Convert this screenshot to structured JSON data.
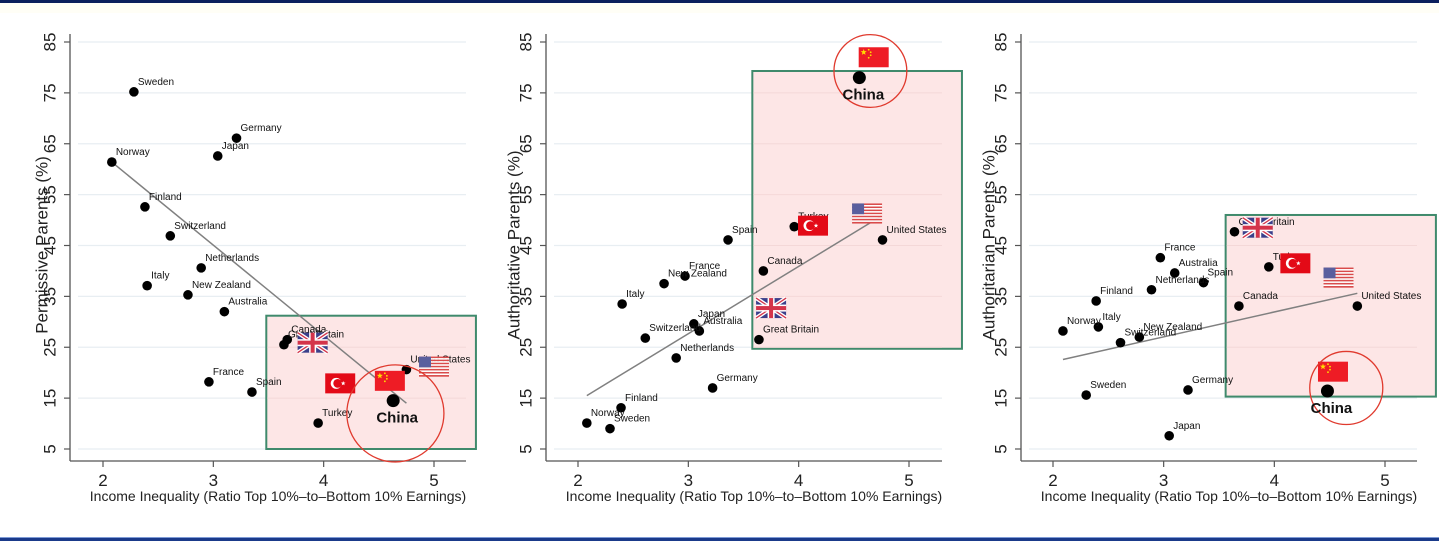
{
  "colors": {
    "frame_top": "#0b1f5c",
    "frame_bottom": "#1a3a8a",
    "highlight_fill": "#fde6e6",
    "highlight_border": "#3f8a6c",
    "circle": "#e03a2e",
    "fit_line": "#808080",
    "point": "#000000",
    "grid": "#e8eef2",
    "flag_red": "#e30a17",
    "china_red": "#ee1c25",
    "china_star": "#ffde00"
  },
  "chart_data": [
    {
      "type": "scatter",
      "title": "",
      "xlabel": "Income Inequality (Ratio Top 10%–to–Bottom 10% Earnings)",
      "ylabel": "Permissive Parents (%)",
      "xlim": [
        1.7,
        5.3
      ],
      "ylim": [
        3,
        87
      ],
      "xticks": [
        2,
        3,
        4,
        5
      ],
      "yticks": [
        5,
        15,
        25,
        35,
        45,
        55,
        65,
        75,
        85
      ],
      "grid": true,
      "fit_line": {
        "x": [
          2.08,
          4.75
        ],
        "y": [
          61.4,
          14.0
        ]
      },
      "highlight_box": {
        "x": [
          3.48,
          5.38
        ],
        "y": [
          5.0,
          31.2
        ]
      },
      "china_circle": {
        "x": 4.65,
        "y": 12.0,
        "rx": 0.44,
        "ry": 10.8
      },
      "flags": [
        {
          "country": "Great Britain",
          "flag": "uk",
          "x": 3.9,
          "y": 25.9
        },
        {
          "country": "Turkey",
          "flag": "turkey",
          "x": 4.15,
          "y": 17.9
        },
        {
          "country": "China",
          "flag": "china",
          "x": 4.6,
          "y": 18.4
        },
        {
          "country": "United States",
          "flag": "usa",
          "x": 5.0,
          "y": 21.2
        }
      ],
      "points": [
        {
          "label": "Sweden",
          "x": 2.28,
          "y": 75.2
        },
        {
          "label": "Germany",
          "x": 3.21,
          "y": 66.1
        },
        {
          "label": "Japan",
          "x": 3.04,
          "y": 62.6
        },
        {
          "label": "Norway",
          "x": 2.08,
          "y": 61.4
        },
        {
          "label": "Finland",
          "x": 2.38,
          "y": 52.6
        },
        {
          "label": "Switzerland",
          "x": 2.61,
          "y": 46.9
        },
        {
          "label": "Netherlands",
          "x": 2.89,
          "y": 40.6
        },
        {
          "label": "Italy",
          "x": 2.4,
          "y": 37.1
        },
        {
          "label": "New Zealand",
          "x": 2.77,
          "y": 35.3
        },
        {
          "label": "Australia",
          "x": 3.1,
          "y": 32.0
        },
        {
          "label": "Canada",
          "x": 3.67,
          "y": 26.5
        },
        {
          "label": "Great Britain",
          "x": 3.64,
          "y": 25.5
        },
        {
          "label": "United States",
          "x": 4.75,
          "y": 20.6
        },
        {
          "label": "France",
          "x": 2.96,
          "y": 18.2
        },
        {
          "label": "Spain",
          "x": 3.35,
          "y": 16.2
        },
        {
          "label": "China",
          "x": 4.63,
          "y": 14.5,
          "emphasis": true
        },
        {
          "label": "Turkey",
          "x": 3.95,
          "y": 10.1
        }
      ]
    },
    {
      "type": "scatter",
      "title": "",
      "xlabel": "Income Inequality (Ratio Top 10%–to–Bottom 10% Earnings)",
      "ylabel": "Authoritative Parents (%)",
      "xlim": [
        1.7,
        5.3
      ],
      "ylim": [
        3,
        87
      ],
      "xticks": [
        2,
        3,
        4,
        5
      ],
      "yticks": [
        5,
        15,
        25,
        35,
        45,
        55,
        65,
        75,
        85
      ],
      "grid": true,
      "fit_line": {
        "x": [
          2.08,
          4.75
        ],
        "y": [
          15.5,
          50.8
        ]
      },
      "highlight_box": {
        "x": [
          3.58,
          5.48
        ],
        "y": [
          24.7,
          79.3
        ]
      },
      "china_circle": {
        "x": 4.65,
        "y": 79.3,
        "rx": 0.33,
        "ry": 7.0
      },
      "flags": [
        {
          "country": "China",
          "flag": "china",
          "x": 4.68,
          "y": 82.0
        },
        {
          "country": "United States",
          "flag": "usa",
          "x": 4.62,
          "y": 51.3
        },
        {
          "country": "Turkey",
          "flag": "turkey",
          "x": 4.13,
          "y": 48.9
        },
        {
          "country": "Great Britain",
          "flag": "uk",
          "x": 3.75,
          "y": 32.7
        }
      ],
      "points": [
        {
          "label": "China",
          "x": 4.55,
          "y": 78.0,
          "emphasis": true
        },
        {
          "label": "Turkey",
          "x": 3.96,
          "y": 48.7
        },
        {
          "label": "Spain",
          "x": 3.36,
          "y": 46.1
        },
        {
          "label": "United States",
          "x": 4.76,
          "y": 46.1
        },
        {
          "label": "Canada",
          "x": 3.68,
          "y": 40.0
        },
        {
          "label": "France",
          "x": 2.97,
          "y": 39.0
        },
        {
          "label": "New Zealand",
          "x": 2.78,
          "y": 37.5
        },
        {
          "label": "Italy",
          "x": 2.4,
          "y": 33.5
        },
        {
          "label": "Japan",
          "x": 3.05,
          "y": 29.6
        },
        {
          "label": "Australia",
          "x": 3.1,
          "y": 28.2
        },
        {
          "label": "Switzerland",
          "x": 2.61,
          "y": 26.8
        },
        {
          "label": "Great Britain",
          "x": 3.64,
          "y": 26.5
        },
        {
          "label": "Netherlands",
          "x": 2.89,
          "y": 22.9
        },
        {
          "label": "Germany",
          "x": 3.22,
          "y": 17.0
        },
        {
          "label": "Finland",
          "x": 2.39,
          "y": 13.1
        },
        {
          "label": "Norway",
          "x": 2.08,
          "y": 10.1
        },
        {
          "label": "Sweden",
          "x": 2.29,
          "y": 9.0
        }
      ]
    },
    {
      "type": "scatter",
      "title": "",
      "xlabel": "Income Inequality (Ratio Top 10%–to–Bottom 10% Earnings)",
      "ylabel": "Authoritarian Parents (%)",
      "xlim": [
        1.7,
        5.3
      ],
      "ylim": [
        3,
        87
      ],
      "xticks": [
        2,
        3,
        4,
        5
      ],
      "yticks": [
        5,
        15,
        25,
        35,
        45,
        55,
        65,
        75,
        85
      ],
      "grid": true,
      "fit_line": {
        "x": [
          2.09,
          4.75
        ],
        "y": [
          22.6,
          35.6
        ]
      },
      "highlight_box": {
        "x": [
          3.56,
          5.46
        ],
        "y": [
          15.3,
          51.0
        ]
      },
      "china_circle": {
        "x": 4.65,
        "y": 17.0,
        "rx": 0.33,
        "ry": 7.1
      },
      "flags": [
        {
          "country": "Great Britain",
          "flag": "uk",
          "x": 3.85,
          "y": 48.5
        },
        {
          "country": "Turkey",
          "flag": "turkey",
          "x": 4.19,
          "y": 41.5
        },
        {
          "country": "United States",
          "flag": "usa",
          "x": 4.58,
          "y": 38.7
        },
        {
          "country": "China",
          "flag": "china",
          "x": 4.53,
          "y": 20.2
        }
      ],
      "points": [
        {
          "label": "Great Britain",
          "x": 3.64,
          "y": 47.7
        },
        {
          "label": "France",
          "x": 2.97,
          "y": 42.6
        },
        {
          "label": "Turkey",
          "x": 3.95,
          "y": 40.8
        },
        {
          "label": "Australia",
          "x": 3.1,
          "y": 39.6
        },
        {
          "label": "Spain",
          "x": 3.36,
          "y": 37.7
        },
        {
          "label": "Netherlands",
          "x": 2.89,
          "y": 36.3
        },
        {
          "label": "Finland",
          "x": 2.39,
          "y": 34.1
        },
        {
          "label": "Canada",
          "x": 3.68,
          "y": 33.1
        },
        {
          "label": "United States",
          "x": 4.75,
          "y": 33.1
        },
        {
          "label": "Italy",
          "x": 2.41,
          "y": 29.0
        },
        {
          "label": "Norway",
          "x": 2.09,
          "y": 28.2
        },
        {
          "label": "New Zealand",
          "x": 2.78,
          "y": 27.0
        },
        {
          "label": "Switzerland",
          "x": 2.61,
          "y": 25.9
        },
        {
          "label": "Germany",
          "x": 3.22,
          "y": 16.6
        },
        {
          "label": "China",
          "x": 4.48,
          "y": 16.4,
          "emphasis": true
        },
        {
          "label": "Sweden",
          "x": 2.3,
          "y": 15.6
        },
        {
          "label": "Japan",
          "x": 3.05,
          "y": 7.6
        }
      ]
    }
  ]
}
